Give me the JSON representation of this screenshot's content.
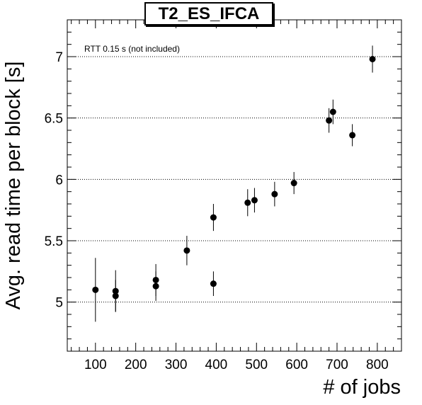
{
  "chart_data": {
    "type": "scatter",
    "title": "T2_ES_IFCA",
    "xlabel": "# of jobs",
    "ylabel": "Avg. read time per block [s]",
    "annotation": "RTT 0.15 s (not included)",
    "xlim": [
      30,
      860
    ],
    "ylim": [
      4.6,
      7.3
    ],
    "x_ticks": [
      100,
      200,
      300,
      400,
      500,
      600,
      700,
      800
    ],
    "y_ticks": [
      5,
      5.5,
      6,
      6.5,
      7
    ],
    "x_tick_labels": [
      "100",
      "200",
      "300",
      "400",
      "500",
      "600",
      "700",
      "800"
    ],
    "y_tick_labels": [
      "5",
      "5.5",
      "6",
      "6.5",
      "7"
    ],
    "grid": "horizontal-dotted",
    "series": [
      {
        "points": [
          {
            "x": 100,
            "y": 5.1,
            "err": 0.26
          },
          {
            "x": 150,
            "y": 5.09,
            "err": 0.17
          },
          {
            "x": 150,
            "y": 5.05,
            "err": 0.13
          },
          {
            "x": 250,
            "y": 5.18,
            "err": 0.13
          },
          {
            "x": 250,
            "y": 5.13,
            "err": 0.12
          },
          {
            "x": 327,
            "y": 5.42,
            "err": 0.12
          },
          {
            "x": 393,
            "y": 5.15,
            "err": 0.1
          },
          {
            "x": 393,
            "y": 5.69,
            "err": 0.11
          },
          {
            "x": 478,
            "y": 5.81,
            "err": 0.11
          },
          {
            "x": 495,
            "y": 5.83,
            "err": 0.1
          },
          {
            "x": 545,
            "y": 5.88,
            "err": 0.1
          },
          {
            "x": 593,
            "y": 5.97,
            "err": 0.09
          },
          {
            "x": 680,
            "y": 6.48,
            "err": 0.1
          },
          {
            "x": 690,
            "y": 6.55,
            "err": 0.1
          },
          {
            "x": 738,
            "y": 6.36,
            "err": 0.09
          },
          {
            "x": 788,
            "y": 6.98,
            "err": 0.11
          }
        ]
      }
    ]
  }
}
